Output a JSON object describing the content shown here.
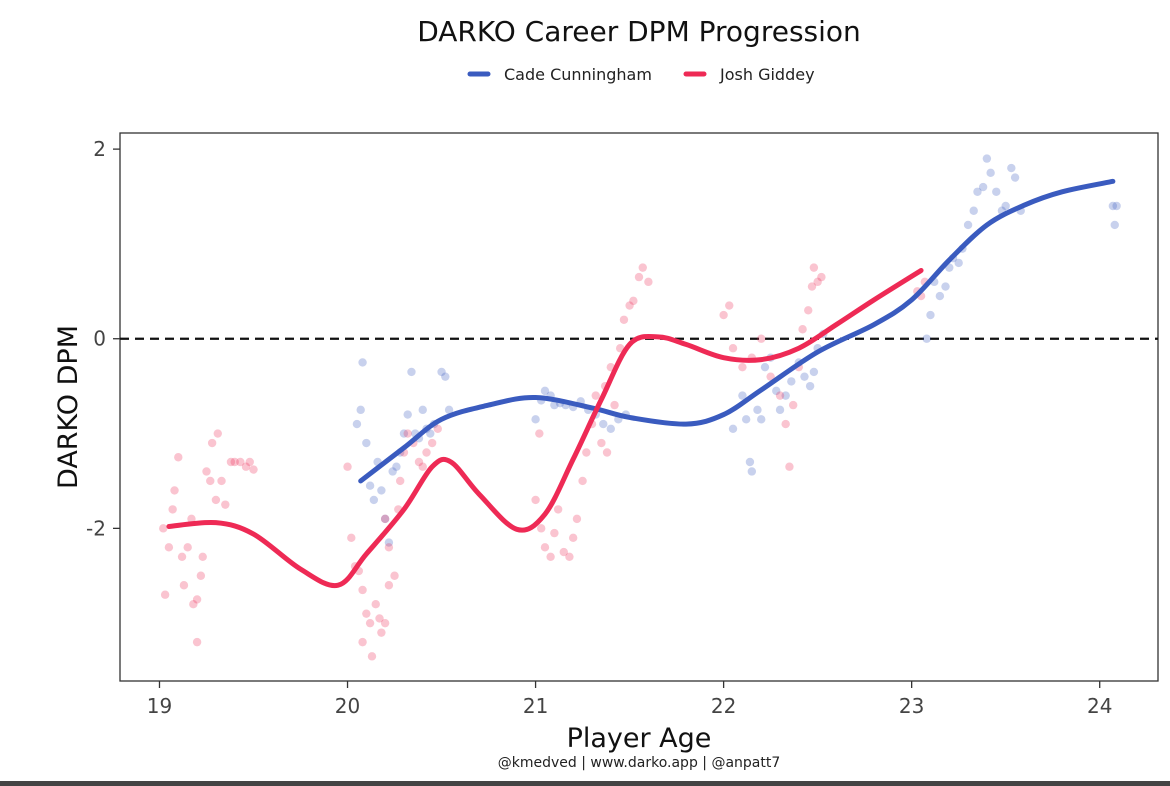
{
  "chart_data": {
    "type": "scatter",
    "title": "DARKO Career DPM Progression",
    "xlabel": "Player Age",
    "ylabel": "DARKO DPM",
    "caption": "@kmedved | www.darko.app | @anpatt7",
    "xlim": [
      18.79,
      24.31
    ],
    "ylim": [
      -3.61,
      2.17
    ],
    "xticks": [
      19,
      20,
      21,
      22,
      23,
      24
    ],
    "xtick_labels": [
      "19",
      "20",
      "21",
      "22",
      "23",
      "24"
    ],
    "yticks": [
      2,
      0,
      -2
    ],
    "ytick_labels": [
      "2",
      "0",
      "-2"
    ],
    "reference_line": {
      "y": 0,
      "style": "dashed"
    },
    "legend_position": "top-center",
    "series": [
      {
        "name": "Cade Cunningham",
        "color": "#3a5bbf",
        "smooth": [
          [
            20.07,
            -1.5
          ],
          [
            20.3,
            -1.15
          ],
          [
            20.5,
            -0.85
          ],
          [
            20.75,
            -0.7
          ],
          [
            21.0,
            -0.62
          ],
          [
            21.3,
            -0.73
          ],
          [
            21.5,
            -0.83
          ],
          [
            21.8,
            -0.9
          ],
          [
            22.0,
            -0.8
          ],
          [
            22.2,
            -0.54
          ],
          [
            22.5,
            -0.14
          ],
          [
            22.8,
            0.15
          ],
          [
            23.0,
            0.41
          ],
          [
            23.2,
            0.83
          ],
          [
            23.4,
            1.2
          ],
          [
            23.6,
            1.41
          ],
          [
            23.8,
            1.55
          ],
          [
            24.07,
            1.66
          ]
        ],
        "points": [
          [
            20.05,
            -0.9
          ],
          [
            20.07,
            -0.75
          ],
          [
            20.08,
            -0.25
          ],
          [
            20.1,
            -1.1
          ],
          [
            20.12,
            -1.55
          ],
          [
            20.14,
            -1.7
          ],
          [
            20.16,
            -1.3
          ],
          [
            20.18,
            -1.6
          ],
          [
            20.2,
            -1.9
          ],
          [
            20.22,
            -2.15
          ],
          [
            20.24,
            -1.4
          ],
          [
            20.26,
            -1.35
          ],
          [
            20.28,
            -1.2
          ],
          [
            20.3,
            -1.0
          ],
          [
            20.32,
            -0.8
          ],
          [
            20.34,
            -0.35
          ],
          [
            20.36,
            -1.0
          ],
          [
            20.38,
            -1.05
          ],
          [
            20.4,
            -0.75
          ],
          [
            20.42,
            -0.95
          ],
          [
            20.44,
            -1.0
          ],
          [
            20.46,
            -0.9
          ],
          [
            20.5,
            -0.35
          ],
          [
            20.52,
            -0.4
          ],
          [
            20.54,
            -0.75
          ],
          [
            21.0,
            -0.85
          ],
          [
            21.03,
            -0.65
          ],
          [
            21.05,
            -0.55
          ],
          [
            21.08,
            -0.6
          ],
          [
            21.1,
            -0.7
          ],
          [
            21.13,
            -0.68
          ],
          [
            21.16,
            -0.7
          ],
          [
            21.2,
            -0.72
          ],
          [
            21.24,
            -0.66
          ],
          [
            21.28,
            -0.75
          ],
          [
            21.32,
            -0.8
          ],
          [
            21.36,
            -0.9
          ],
          [
            21.4,
            -0.95
          ],
          [
            21.44,
            -0.85
          ],
          [
            21.48,
            -0.8
          ],
          [
            22.05,
            -0.95
          ],
          [
            22.1,
            -0.6
          ],
          [
            22.12,
            -0.85
          ],
          [
            22.14,
            -1.3
          ],
          [
            22.15,
            -1.4
          ],
          [
            22.18,
            -0.75
          ],
          [
            22.2,
            -0.85
          ],
          [
            22.22,
            -0.3
          ],
          [
            22.25,
            -0.2
          ],
          [
            22.28,
            -0.55
          ],
          [
            22.3,
            -0.75
          ],
          [
            22.33,
            -0.6
          ],
          [
            22.36,
            -0.45
          ],
          [
            22.4,
            -0.25
          ],
          [
            22.43,
            -0.4
          ],
          [
            22.46,
            -0.5
          ],
          [
            22.48,
            -0.35
          ],
          [
            22.5,
            -0.1
          ],
          [
            22.53,
            0.05
          ],
          [
            23.08,
            0.0
          ],
          [
            23.1,
            0.25
          ],
          [
            23.12,
            0.6
          ],
          [
            23.15,
            0.45
          ],
          [
            23.18,
            0.55
          ],
          [
            23.2,
            0.75
          ],
          [
            23.22,
            0.85
          ],
          [
            23.25,
            0.8
          ],
          [
            23.27,
            0.95
          ],
          [
            23.3,
            1.2
          ],
          [
            23.33,
            1.35
          ],
          [
            23.35,
            1.55
          ],
          [
            23.38,
            1.6
          ],
          [
            23.4,
            1.9
          ],
          [
            23.42,
            1.75
          ],
          [
            23.45,
            1.55
          ],
          [
            23.48,
            1.35
          ],
          [
            23.5,
            1.4
          ],
          [
            23.53,
            1.8
          ],
          [
            23.55,
            1.7
          ],
          [
            23.58,
            1.35
          ],
          [
            24.07,
            1.4
          ],
          [
            24.08,
            1.2
          ],
          [
            24.09,
            1.4
          ]
        ]
      },
      {
        "name": "Josh Giddey",
        "color": "#ee2a55",
        "smooth": [
          [
            19.05,
            -1.98
          ],
          [
            19.3,
            -1.94
          ],
          [
            19.5,
            -2.06
          ],
          [
            19.75,
            -2.43
          ],
          [
            19.95,
            -2.6
          ],
          [
            20.1,
            -2.27
          ],
          [
            20.3,
            -1.8
          ],
          [
            20.45,
            -1.35
          ],
          [
            20.55,
            -1.3
          ],
          [
            20.7,
            -1.64
          ],
          [
            20.9,
            -2.01
          ],
          [
            21.05,
            -1.85
          ],
          [
            21.2,
            -1.27
          ],
          [
            21.35,
            -0.64
          ],
          [
            21.5,
            -0.06
          ],
          [
            21.65,
            0.02
          ],
          [
            21.8,
            -0.06
          ],
          [
            22.0,
            -0.2
          ],
          [
            22.2,
            -0.22
          ],
          [
            22.4,
            -0.1
          ],
          [
            22.6,
            0.15
          ],
          [
            22.8,
            0.41
          ],
          [
            23.05,
            0.72
          ]
        ],
        "points": [
          [
            19.02,
            -2.0
          ],
          [
            19.03,
            -2.7
          ],
          [
            19.05,
            -2.2
          ],
          [
            19.07,
            -1.8
          ],
          [
            19.08,
            -1.6
          ],
          [
            19.1,
            -1.25
          ],
          [
            19.12,
            -2.3
          ],
          [
            19.13,
            -2.6
          ],
          [
            19.15,
            -2.2
          ],
          [
            19.17,
            -1.9
          ],
          [
            19.18,
            -2.8
          ],
          [
            19.2,
            -2.75
          ],
          [
            19.2,
            -3.2
          ],
          [
            19.22,
            -2.5
          ],
          [
            19.23,
            -2.3
          ],
          [
            19.25,
            -1.4
          ],
          [
            19.27,
            -1.5
          ],
          [
            19.28,
            -1.1
          ],
          [
            19.3,
            -1.7
          ],
          [
            19.31,
            -1.0
          ],
          [
            19.33,
            -1.5
          ],
          [
            19.35,
            -1.75
          ],
          [
            19.38,
            -1.3
          ],
          [
            19.4,
            -1.3
          ],
          [
            19.43,
            -1.3
          ],
          [
            19.46,
            -1.35
          ],
          [
            19.48,
            -1.3
          ],
          [
            19.5,
            -1.38
          ],
          [
            20.0,
            -1.35
          ],
          [
            20.02,
            -2.1
          ],
          [
            20.04,
            -2.4
          ],
          [
            20.06,
            -2.45
          ],
          [
            20.08,
            -2.65
          ],
          [
            20.08,
            -3.2
          ],
          [
            20.1,
            -2.9
          ],
          [
            20.12,
            -3.0
          ],
          [
            20.13,
            -3.35
          ],
          [
            20.15,
            -2.8
          ],
          [
            20.17,
            -2.95
          ],
          [
            20.18,
            -3.1
          ],
          [
            20.2,
            -3.0
          ],
          [
            20.22,
            -2.6
          ],
          [
            20.2,
            -1.9
          ],
          [
            20.22,
            -2.2
          ],
          [
            20.25,
            -2.5
          ],
          [
            20.27,
            -1.8
          ],
          [
            20.28,
            -1.5
          ],
          [
            20.3,
            -1.2
          ],
          [
            20.32,
            -1.0
          ],
          [
            20.35,
            -1.1
          ],
          [
            20.38,
            -1.3
          ],
          [
            20.4,
            -1.35
          ],
          [
            20.42,
            -1.2
          ],
          [
            20.45,
            -1.1
          ],
          [
            20.48,
            -0.95
          ],
          [
            21.0,
            -1.7
          ],
          [
            21.02,
            -1.0
          ],
          [
            21.03,
            -2.0
          ],
          [
            21.05,
            -2.2
          ],
          [
            21.08,
            -2.3
          ],
          [
            21.1,
            -2.05
          ],
          [
            21.12,
            -1.8
          ],
          [
            21.15,
            -2.25
          ],
          [
            21.18,
            -2.3
          ],
          [
            21.2,
            -2.1
          ],
          [
            21.22,
            -1.9
          ],
          [
            21.25,
            -1.5
          ],
          [
            21.27,
            -1.2
          ],
          [
            21.3,
            -0.9
          ],
          [
            21.32,
            -0.6
          ],
          [
            21.35,
            -1.1
          ],
          [
            21.37,
            -0.5
          ],
          [
            21.38,
            -1.2
          ],
          [
            21.4,
            -0.3
          ],
          [
            21.42,
            -0.7
          ],
          [
            21.45,
            -0.1
          ],
          [
            21.47,
            0.2
          ],
          [
            21.5,
            0.35
          ],
          [
            21.52,
            0.4
          ],
          [
            21.55,
            0.65
          ],
          [
            21.57,
            0.75
          ],
          [
            21.6,
            0.6
          ],
          [
            22.0,
            0.25
          ],
          [
            22.03,
            0.35
          ],
          [
            22.05,
            -0.1
          ],
          [
            22.1,
            -0.3
          ],
          [
            22.15,
            -0.2
          ],
          [
            22.2,
            0.0
          ],
          [
            22.25,
            -0.4
          ],
          [
            22.3,
            -0.6
          ],
          [
            22.33,
            -0.9
          ],
          [
            22.35,
            -1.35
          ],
          [
            22.37,
            -0.7
          ],
          [
            22.4,
            -0.3
          ],
          [
            22.42,
            0.1
          ],
          [
            22.45,
            0.3
          ],
          [
            22.47,
            0.55
          ],
          [
            22.48,
            0.75
          ],
          [
            22.5,
            0.6
          ],
          [
            22.52,
            0.65
          ],
          [
            23.03,
            0.5
          ],
          [
            23.05,
            0.45
          ],
          [
            23.07,
            0.6
          ]
        ]
      }
    ]
  }
}
